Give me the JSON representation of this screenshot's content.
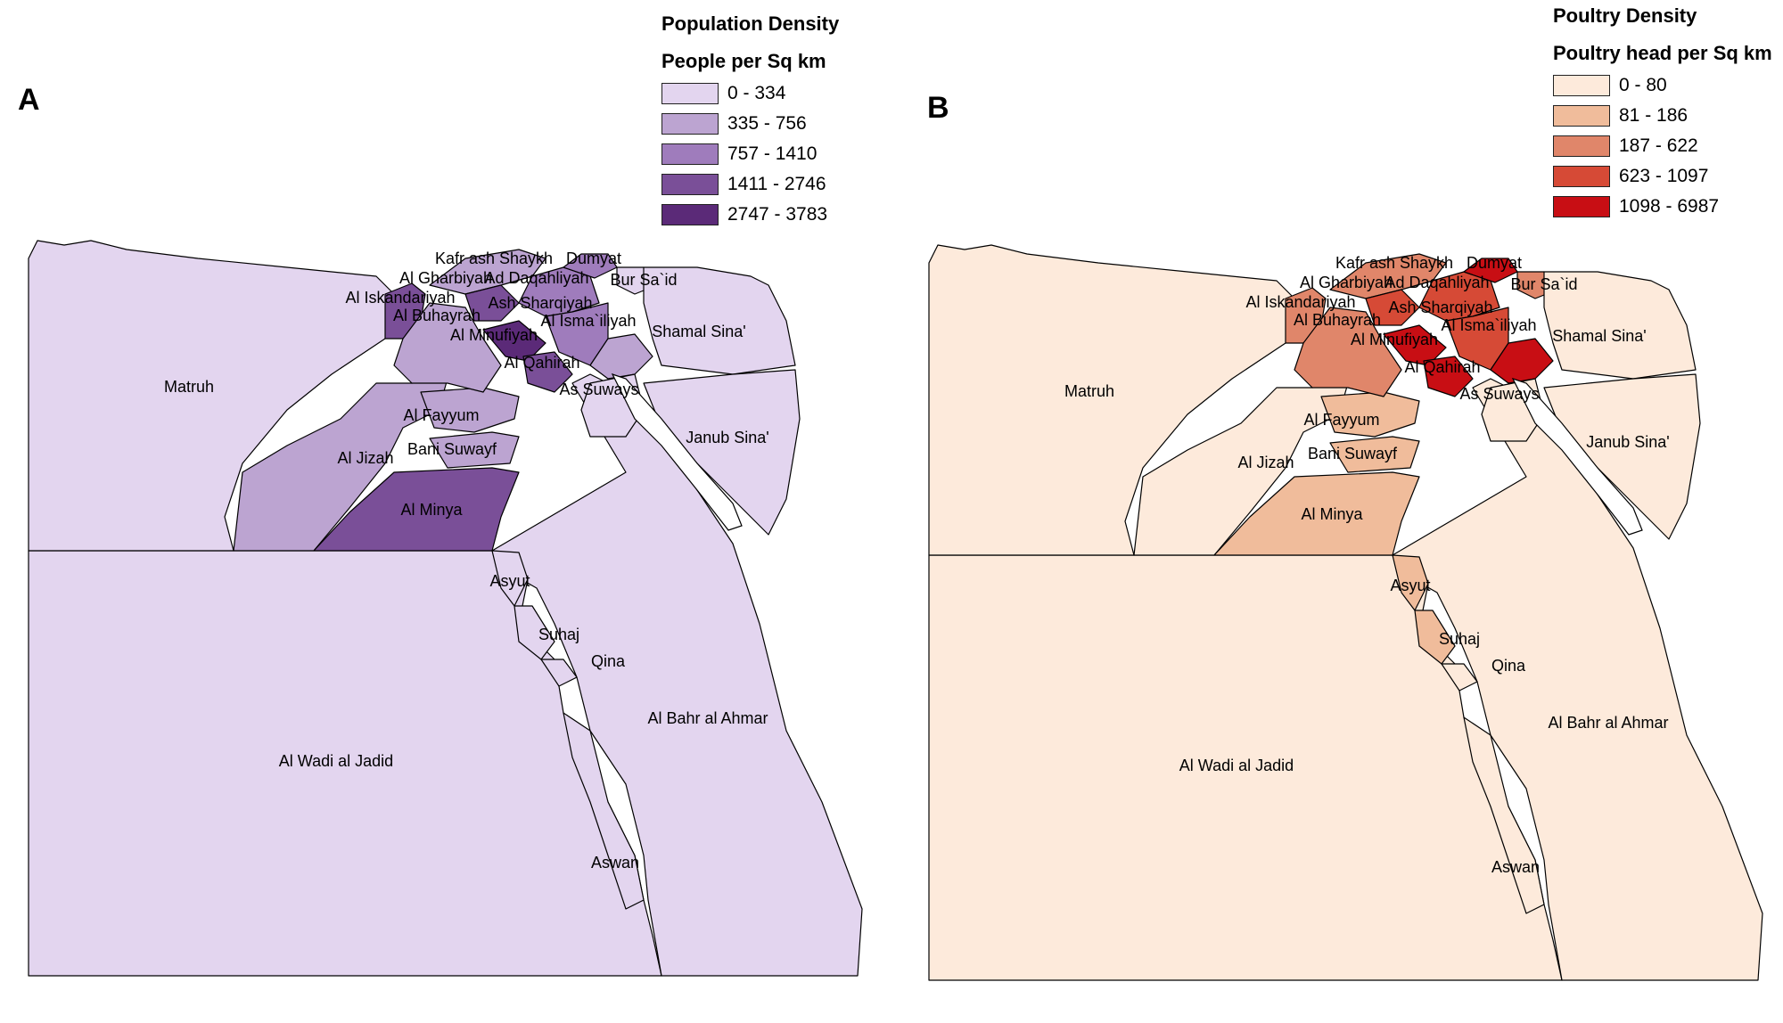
{
  "panels": [
    {
      "letter": "A",
      "legend": {
        "title": "Population Density",
        "subtitle": "People per Sq km",
        "classes": [
          {
            "label": "0 - 334",
            "color": "#e3d5ef"
          },
          {
            "label": "335 - 756",
            "color": "#bca4d1"
          },
          {
            "label": "757 - 1410",
            "color": "#9f7cbc"
          },
          {
            "label": "1411 - 2746",
            "color": "#7a4f98"
          },
          {
            "label": "2747 - 3783",
            "color": "#5b2a78"
          }
        ]
      },
      "regions": {
        "Matruh": 0,
        "Al Wadi al Jadid": 0,
        "Al Bahr al Ahmar": 0,
        "Shamal Sina'": 0,
        "Janub Sina'": 0,
        "As Suways": 0,
        "Bur Sa`id": 0,
        "Asyut": 0,
        "Suhaj": 0,
        "Qina": 0,
        "Aswan": 0,
        "Al Iskandariyah": 3,
        "Al Buhayrah": 1,
        "Al Jizah": 1,
        "Al Fayyum": 1,
        "Bani Suwayf": 1,
        "Al Minya": 3,
        "Al Qahirah": 3,
        "Al Minufiyah": 4,
        "Al Gharbiyah": 3,
        "Kafr ash Shaykh": 1,
        "Ad Daqahliyah": 2,
        "Dumyat": 2,
        "Ash Sharqiyah": 2,
        "Al Isma`iliyah": 1
      }
    },
    {
      "letter": "B",
      "legend": {
        "title": "Poultry Density",
        "subtitle": "Poultry head per Sq km",
        "classes": [
          {
            "label": "0 - 80",
            "color": "#fdeadb"
          },
          {
            "label": "81 - 186",
            "color": "#f0bc9b"
          },
          {
            "label": "187 - 622",
            "color": "#e0866a"
          },
          {
            "label": "623 - 1097",
            "color": "#d64a36"
          },
          {
            "label": "1098 - 6987",
            "color": "#c80e14"
          }
        ]
      },
      "regions": {
        "Matruh": 0,
        "Al Wadi al Jadid": 0,
        "Al Bahr al Ahmar": 0,
        "Shamal Sina'": 0,
        "Janub Sina'": 0,
        "As Suways": 0,
        "Bur Sa`id": 2,
        "Asyut": 1,
        "Suhaj": 1,
        "Qina": 0,
        "Aswan": 0,
        "Al Iskandariyah": 2,
        "Al Buhayrah": 2,
        "Al Jizah": 0,
        "Al Fayyum": 1,
        "Bani Suwayf": 1,
        "Al Minya": 1,
        "Al Qahirah": 4,
        "Al Minufiyah": 4,
        "Al Gharbiyah": 3,
        "Kafr ash Shaykh": 2,
        "Ad Daqahliyah": 3,
        "Dumyat": 4,
        "Ash Sharqiyah": 3,
        "Al Isma`iliyah": 4
      }
    }
  ],
  "region_labels": [
    "Matruh",
    "Al Wadi al Jadid",
    "Al Bahr al Ahmar",
    "Shamal Sina'",
    "Janub Sina'",
    "As Suways",
    "Bur Sa`id",
    "Asyut",
    "Suhaj",
    "Qina",
    "Aswan",
    "Al Iskandariyah",
    "Al Buhayrah",
    "Al Jizah",
    "Al Fayyum",
    "Bani Suwayf",
    "Al Minya",
    "Al Qahirah",
    "Al Minufiyah",
    "Al Gharbiyah",
    "Kafr ash Shaykh",
    "Ad Daqahliyah",
    "Dumyat",
    "Ash Sharqiyah",
    "Al Isma`iliyah"
  ]
}
